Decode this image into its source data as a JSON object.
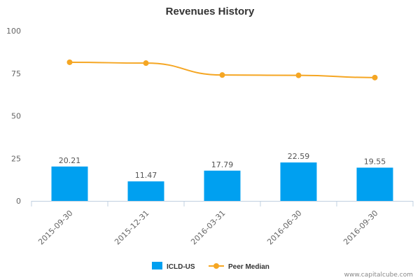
{
  "chart_data": {
    "type": "bar",
    "title": "Revenues History",
    "categories": [
      "2015-09-30",
      "2015-12-31",
      "2016-03-31",
      "2016-06-30",
      "2016-09-30"
    ],
    "series": [
      {
        "name": "ICLD-US",
        "type": "bar",
        "color": "#00a0f0",
        "values": [
          20.21,
          11.47,
          17.79,
          22.59,
          19.55
        ],
        "labels": [
          "20.21",
          "11.47",
          "17.79",
          "22.59",
          "19.55"
        ]
      },
      {
        "name": "Peer Median",
        "type": "line",
        "color": "#f5a623",
        "values": [
          81.5,
          81.0,
          74.0,
          73.8,
          72.5
        ]
      }
    ],
    "ylim": [
      0,
      100
    ],
    "yticks": [
      "0",
      "25",
      "50",
      "75",
      "100"
    ],
    "xlabel": "",
    "ylabel": "",
    "grid": false,
    "legend_position": "bottom-center"
  },
  "credit": "www.capitalcube.com"
}
